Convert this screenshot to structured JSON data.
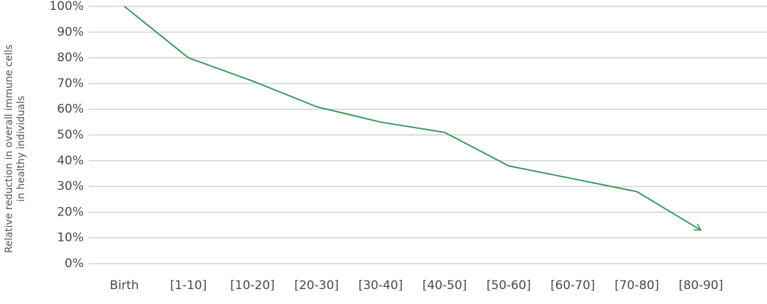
{
  "chart_data": {
    "type": "line",
    "ylabel": [
      "Relative reduction in overall immune cells",
      "in healthy individuals"
    ],
    "categories": [
      "Birth",
      "[1-10]",
      "[10-20]",
      "[20-30]",
      "[30-40]",
      "[40-50]",
      "[50-60]",
      "[60-70]",
      "[70-80]",
      "[80-90]"
    ],
    "values": [
      100,
      80,
      71,
      61,
      55,
      51,
      38,
      33,
      28,
      13
    ],
    "color": "#3b9a5b",
    "ylim": [
      0,
      100
    ],
    "yticks": [
      {
        "value": 0,
        "label": "0%"
      },
      {
        "value": 10,
        "label": "10%"
      },
      {
        "value": 20,
        "label": "20%"
      },
      {
        "value": 30,
        "label": "30%"
      },
      {
        "value": 40,
        "label": "40%"
      },
      {
        "value": 50,
        "label": "50%"
      },
      {
        "value": 60,
        "label": "60%"
      },
      {
        "value": 70,
        "label": "70%"
      },
      {
        "value": 80,
        "label": "80%"
      },
      {
        "value": 90,
        "label": "90%"
      },
      {
        "value": 100,
        "label": "100%"
      }
    ],
    "grid": true
  }
}
